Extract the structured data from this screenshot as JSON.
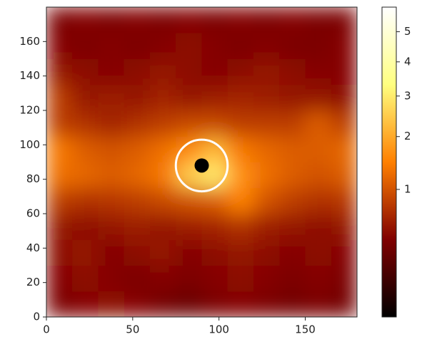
{
  "chart_data": {
    "type": "heatmap",
    "colormap": "afmhot",
    "xlim": [
      0,
      180
    ],
    "xticks": [
      0,
      50,
      100,
      150
    ],
    "ylim": [
      0,
      180
    ],
    "yticks": [
      0,
      20,
      40,
      60,
      80,
      100,
      120,
      140,
      160
    ],
    "cell_size": 15,
    "z": [
      [
        0.35,
        0.4,
        0.45,
        0.4,
        0.3,
        0.25,
        0.35,
        0.4,
        0.35,
        0.3,
        0.35,
        0.3
      ],
      [
        0.4,
        0.45,
        0.4,
        0.35,
        0.4,
        0.35,
        0.4,
        0.45,
        0.4,
        0.35,
        0.4,
        0.35
      ],
      [
        0.45,
        0.5,
        0.4,
        0.45,
        0.5,
        0.4,
        0.45,
        0.5,
        0.45,
        0.4,
        0.45,
        0.4
      ],
      [
        0.5,
        0.45,
        0.5,
        0.55,
        0.5,
        0.55,
        0.6,
        0.7,
        0.55,
        0.5,
        0.45,
        0.5
      ],
      [
        0.8,
        0.7,
        0.75,
        0.8,
        0.9,
        1.0,
        1.1,
        1.5,
        1.0,
        0.8,
        0.7,
        0.75
      ],
      [
        1.3,
        1.2,
        1.1,
        1.2,
        1.4,
        2.5,
        3.0,
        1.7,
        1.3,
        1.1,
        1.0,
        1.1
      ],
      [
        1.4,
        1.1,
        1.0,
        1.1,
        1.3,
        1.6,
        2.2,
        1.4,
        1.2,
        1.1,
        1.1,
        1.2
      ],
      [
        0.8,
        0.7,
        0.6,
        0.7,
        0.8,
        0.9,
        0.9,
        0.8,
        0.8,
        0.8,
        1.1,
        0.8
      ],
      [
        0.8,
        0.5,
        0.55,
        0.5,
        0.6,
        0.5,
        0.55,
        0.6,
        0.55,
        0.5,
        0.5,
        0.45
      ],
      [
        0.5,
        0.45,
        0.4,
        0.45,
        0.5,
        0.45,
        0.4,
        0.45,
        0.5,
        0.45,
        0.4,
        0.4
      ],
      [
        0.4,
        0.35,
        0.4,
        0.35,
        0.4,
        0.45,
        0.4,
        0.35,
        0.4,
        0.35,
        0.35,
        0.4
      ],
      [
        0.35,
        0.4,
        0.35,
        0.4,
        0.35,
        0.4,
        0.35,
        0.4,
        0.35,
        0.4,
        0.35,
        0.35
      ]
    ],
    "colorbar": {
      "lim": [
        0,
        5.9
      ],
      "ticks": [
        1,
        2,
        3,
        4,
        5
      ],
      "gamma": 0.5
    },
    "marker": {
      "x": 90,
      "y": 88,
      "radius": 15,
      "ring_color": "#ffffff",
      "dot_color": "#000000"
    }
  }
}
